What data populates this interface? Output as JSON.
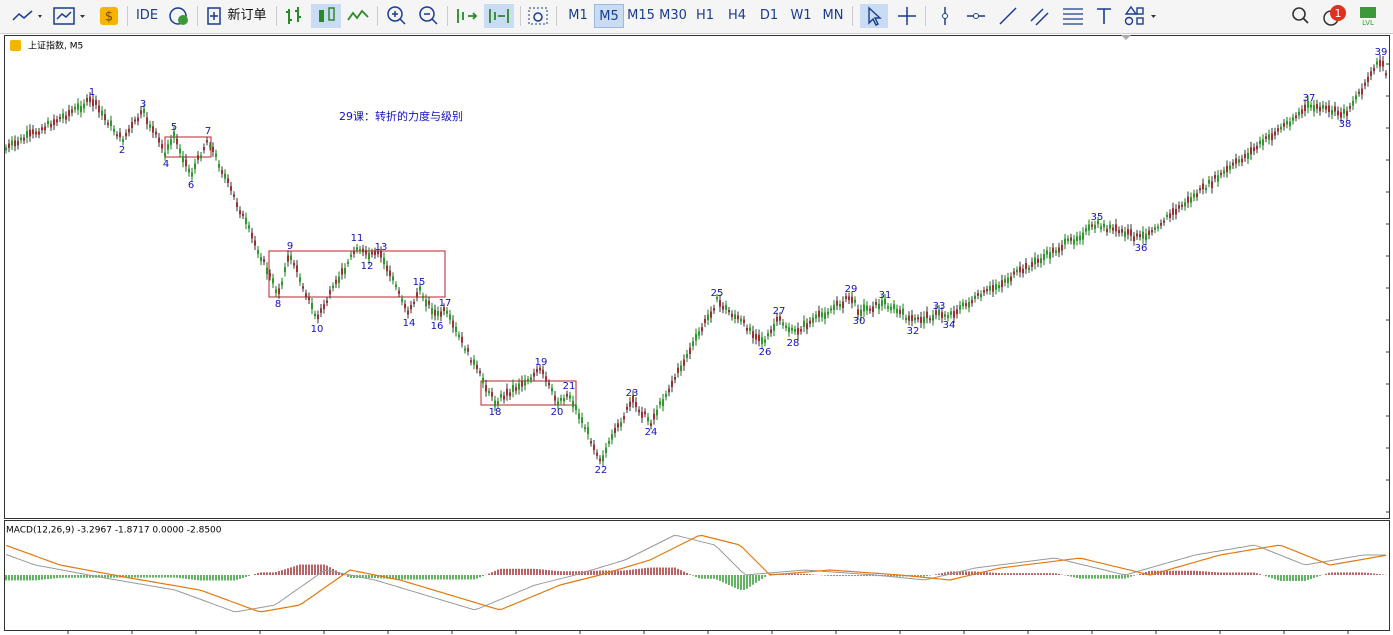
{
  "toolbar": {
    "ide": "IDE",
    "new_order": "新订单",
    "timeframes": [
      "M1",
      "M5",
      "M15",
      "M30",
      "H1",
      "H4",
      "D1",
      "W1",
      "MN"
    ],
    "active_timeframe": "M5",
    "notification_count": 1
  },
  "chart": {
    "symbol": "上证指数, M5",
    "annotation": "29课：转折的力度与级别",
    "wave_labels": [
      "1",
      "2",
      "3",
      "4",
      "5",
      "6",
      "7",
      "8",
      "9",
      "10",
      "11",
      "12",
      "13",
      "14",
      "15",
      "16",
      "17",
      "18",
      "19",
      "20",
      "21",
      "22",
      "23",
      "24",
      "25",
      "26",
      "27",
      "28",
      "29",
      "30",
      "31",
      "32",
      "33",
      "34",
      "35",
      "36",
      "37",
      "38",
      "39"
    ]
  },
  "indicator": {
    "label": "MACD(12,26,9) -3.2967 -1.8717 0.0000 -2.8500"
  }
}
